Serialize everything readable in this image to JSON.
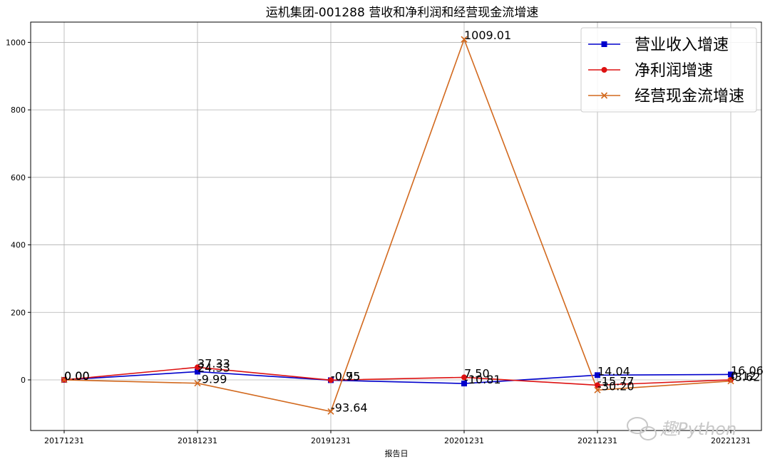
{
  "chart_data": {
    "type": "line",
    "title": "运机集团-001288 营收和净利润和经营现金流增速",
    "xlabel": "报告日",
    "ylabel": "",
    "categories": [
      "20171231",
      "20181231",
      "20191231",
      "20201231",
      "20211231",
      "20221231"
    ],
    "ylim": [
      -150,
      1060
    ],
    "yticks": [
      0,
      200,
      400,
      600,
      800,
      1000
    ],
    "grid": true,
    "legend_position": "top-right",
    "series": [
      {
        "name": "营业收入增速",
        "color": "#0000cc",
        "marker": "square",
        "values": [
          0.0,
          24.33,
          -0.95,
          -10.81,
          14.04,
          16.06
        ],
        "labels": [
          "0.00",
          "24.33",
          "-0.95",
          "-10.81",
          "14.04",
          "16.06"
        ]
      },
      {
        "name": "净利润增速",
        "color": "#dd1111",
        "marker": "circle",
        "values": [
          0.0,
          37.33,
          -0.75,
          7.5,
          -15.77,
          0.12
        ],
        "labels": [
          "0.00",
          "37.33",
          "-0.75",
          "7.50",
          "-15.77",
          "0.12"
        ]
      },
      {
        "name": "经营现金流增速",
        "color": "#d2691e",
        "marker": "x",
        "values": [
          0.0,
          -9.99,
          -93.64,
          1009.01,
          -30.2,
          -3.62
        ],
        "labels": [
          "0.00",
          "-9.99",
          "-93.64",
          "1009.01",
          "-30.20",
          "-3.62"
        ]
      }
    ]
  },
  "watermark": {
    "icon": "wechat-icon",
    "text": "趣Python",
    "color": "#c8c8c8"
  }
}
